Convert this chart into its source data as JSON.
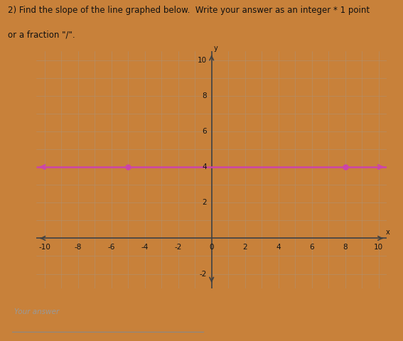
{
  "title_line1": "2) Find the slope of the line graphed below.  Write your answer as an integer * 1 point",
  "title_line2": "or a fraction \"/\".",
  "answer_label": "Your answer",
  "outer_bg": "#c8813a",
  "graph_bg": "#f0d8b8",
  "grid_color": "#b09070",
  "axis_color": "#404040",
  "line_color": "#cc44aa",
  "line_y": 4,
  "dot_x1": -5,
  "dot_x2": 8,
  "dot_y": 4,
  "xlim": [
    -10.5,
    10.5
  ],
  "ylim": [
    -2.8,
    10.5
  ],
  "xtick_vals": [
    -10,
    -8,
    -6,
    -4,
    -2,
    0,
    2,
    4,
    6,
    8,
    10
  ],
  "ytick_vals": [
    -2,
    2,
    4,
    6,
    8,
    10
  ],
  "xlabel": "x",
  "ylabel": "y",
  "title_fontsize": 8.5,
  "tick_fontsize": 7.5
}
